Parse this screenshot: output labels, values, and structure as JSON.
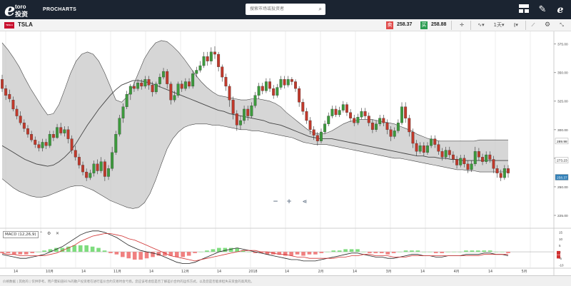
{
  "app": {
    "logo_e": "e",
    "logo_toro": "toro",
    "logo_cn": "投资",
    "product": "PROCHARTS",
    "search_placeholder": "搜索市场或投资者"
  },
  "symbol": {
    "name": "TSLA",
    "flag_text": "TESLA",
    "sell_label": "卖",
    "sell_price": "258.37",
    "buy_label": "买",
    "buy_price": "258.88",
    "timeframe": "1天"
  },
  "macd": {
    "label": "MACD (12,26,9)"
  },
  "footer": {
    "disclaimer": "价格数据 | 其他的 | 仅供参考。用户需知道81%的散户投资者在进行差价合约交易时会亏损。您应该考虑您是否了解差价合约的运作方式，以及您是否能承担失去资金的高风险。"
  },
  "chart_data": {
    "type": "candlestick",
    "x_ticks": [
      "14",
      "10月",
      "14",
      "11月",
      "14",
      "12月",
      "14",
      "2018",
      "14",
      "2月",
      "14",
      "3月",
      "14",
      "4月",
      "14",
      "5月"
    ],
    "price_ticks": [
      "375.00",
      "350.00",
      "325.00",
      "300.00",
      "275.00",
      "250.00",
      "225.00"
    ],
    "macd_ticks": [
      "15",
      "10",
      "5",
      "0",
      "-5",
      "-10"
    ],
    "price_labels": [
      {
        "value": "289.98",
        "color": "#ffffff",
        "text_color": "#222222"
      },
      {
        "value": "273.23",
        "color": "#ffffff",
        "text_color": "#222222"
      },
      {
        "value": "258.37",
        "color": "#2f7fb8",
        "text_color": "#ffffff"
      }
    ],
    "ylim": [
      215,
      386
    ],
    "macd_ylim": [
      -12,
      17
    ],
    "candles": [
      [
        344,
        336,
        348,
        333
      ],
      [
        336,
        330,
        339,
        326
      ],
      [
        331,
        327,
        335,
        324
      ],
      [
        326,
        318,
        329,
        316
      ],
      [
        318,
        312,
        321,
        309
      ],
      [
        312,
        306,
        316,
        304
      ],
      [
        306,
        301,
        309,
        298
      ],
      [
        301,
        296,
        304,
        293
      ],
      [
        296,
        291,
        299,
        289
      ],
      [
        291,
        287,
        294,
        284
      ],
      [
        287,
        284,
        290,
        281
      ],
      [
        284,
        289,
        292,
        281
      ],
      [
        289,
        286,
        292,
        283
      ],
      [
        286,
        296,
        299,
        284
      ],
      [
        296,
        293,
        299,
        290
      ],
      [
        293,
        302,
        305,
        292
      ],
      [
        302,
        297,
        306,
        295
      ],
      [
        297,
        300,
        303,
        294
      ],
      [
        300,
        292,
        303,
        288
      ],
      [
        292,
        282,
        295,
        279
      ],
      [
        282,
        276,
        286,
        273
      ],
      [
        276,
        269,
        279,
        266
      ],
      [
        269,
        263,
        272,
        260
      ],
      [
        263,
        258,
        266,
        255
      ],
      [
        258,
        262,
        265,
        256
      ],
      [
        262,
        270,
        273,
        259
      ],
      [
        270,
        264,
        274,
        261
      ],
      [
        264,
        272,
        276,
        262
      ],
      [
        272,
        259,
        274,
        255
      ],
      [
        259,
        266,
        269,
        256
      ],
      [
        266,
        280,
        285,
        264
      ],
      [
        280,
        296,
        299,
        278
      ],
      [
        296,
        310,
        313,
        294
      ],
      [
        310,
        320,
        323,
        306
      ],
      [
        320,
        331,
        334,
        318
      ],
      [
        331,
        338,
        340,
        326
      ],
      [
        338,
        336,
        342,
        333
      ],
      [
        336,
        341,
        344,
        334
      ],
      [
        341,
        338,
        344,
        335
      ],
      [
        338,
        344,
        347,
        336
      ],
      [
        344,
        339,
        347,
        335
      ],
      [
        339,
        333,
        342,
        329
      ],
      [
        333,
        340,
        342,
        331
      ],
      [
        340,
        346,
        349,
        337
      ],
      [
        346,
        351,
        354,
        344
      ],
      [
        351,
        340,
        353,
        336
      ],
      [
        340,
        326,
        342,
        322
      ],
      [
        326,
        330,
        334,
        324
      ],
      [
        330,
        340,
        342,
        328
      ],
      [
        340,
        336,
        343,
        333
      ],
      [
        336,
        342,
        345,
        334
      ],
      [
        342,
        338,
        345,
        336
      ],
      [
        338,
        349,
        352,
        336
      ],
      [
        349,
        352,
        355,
        346
      ],
      [
        352,
        356,
        360,
        350
      ],
      [
        356,
        364,
        368,
        354
      ],
      [
        364,
        360,
        368,
        356
      ],
      [
        360,
        368,
        372,
        357
      ],
      [
        368,
        366,
        373,
        362
      ],
      [
        366,
        355,
        368,
        351
      ],
      [
        355,
        346,
        357,
        342
      ],
      [
        346,
        338,
        349,
        334
      ],
      [
        338,
        326,
        340,
        320
      ],
      [
        326,
        314,
        329,
        309
      ],
      [
        314,
        304,
        317,
        299
      ],
      [
        304,
        308,
        312,
        300
      ],
      [
        308,
        318,
        321,
        305
      ],
      [
        318,
        312,
        321,
        308
      ],
      [
        312,
        321,
        324,
        310
      ],
      [
        321,
        330,
        333,
        319
      ],
      [
        330,
        338,
        341,
        327
      ],
      [
        338,
        334,
        341,
        331
      ],
      [
        334,
        342,
        345,
        332
      ],
      [
        342,
        336,
        345,
        333
      ],
      [
        336,
        330,
        339,
        327
      ],
      [
        330,
        337,
        340,
        328
      ],
      [
        337,
        344,
        347,
        335
      ],
      [
        344,
        339,
        347,
        336
      ],
      [
        339,
        344,
        347,
        337
      ],
      [
        344,
        342,
        346,
        339
      ],
      [
        342,
        336,
        344,
        333
      ],
      [
        336,
        324,
        338,
        320
      ],
      [
        324,
        316,
        327,
        313
      ],
      [
        316,
        308,
        319,
        305
      ],
      [
        308,
        300,
        311,
        296
      ],
      [
        300,
        295,
        303,
        291
      ],
      [
        295,
        290,
        298,
        286
      ],
      [
        290,
        298,
        301,
        288
      ],
      [
        298,
        305,
        308,
        296
      ],
      [
        305,
        312,
        315,
        303
      ],
      [
        312,
        318,
        321,
        310
      ],
      [
        318,
        313,
        321,
        311
      ],
      [
        313,
        317,
        320,
        311
      ],
      [
        317,
        322,
        325,
        315
      ],
      [
        322,
        315,
        324,
        312
      ],
      [
        315,
        310,
        318,
        307
      ],
      [
        310,
        306,
        313,
        303
      ],
      [
        306,
        311,
        314,
        304
      ],
      [
        311,
        316,
        319,
        309
      ],
      [
        316,
        312,
        319,
        309
      ],
      [
        312,
        306,
        315,
        303
      ],
      [
        306,
        300,
        309,
        297
      ],
      [
        300,
        305,
        308,
        298
      ],
      [
        305,
        310,
        313,
        303
      ],
      [
        310,
        306,
        313,
        303
      ],
      [
        306,
        300,
        309,
        296
      ],
      [
        300,
        294,
        303,
        290
      ],
      [
        294,
        299,
        302,
        292
      ],
      [
        299,
        306,
        309,
        297
      ],
      [
        306,
        320,
        324,
        304
      ],
      [
        320,
        310,
        324,
        306
      ],
      [
        310,
        298,
        313,
        294
      ],
      [
        298,
        288,
        301,
        284
      ],
      [
        288,
        281,
        291,
        277
      ],
      [
        281,
        286,
        289,
        279
      ],
      [
        286,
        280,
        289,
        277
      ],
      [
        280,
        286,
        289,
        278
      ],
      [
        286,
        292,
        295,
        284
      ],
      [
        292,
        287,
        295,
        284
      ],
      [
        287,
        281,
        290,
        278
      ],
      [
        281,
        276,
        284,
        273
      ],
      [
        276,
        282,
        285,
        274
      ],
      [
        282,
        278,
        285,
        275
      ],
      [
        278,
        274,
        281,
        271
      ],
      [
        274,
        269,
        277,
        266
      ],
      [
        269,
        275,
        278,
        267
      ],
      [
        275,
        270,
        278,
        267
      ],
      [
        270,
        265,
        273,
        262
      ],
      [
        265,
        270,
        273,
        263
      ],
      [
        270,
        281,
        285,
        268
      ],
      [
        281,
        276,
        284,
        273
      ],
      [
        276,
        272,
        279,
        269
      ],
      [
        272,
        278,
        281,
        270
      ],
      [
        278,
        274,
        281,
        271
      ],
      [
        274,
        266,
        277,
        262
      ],
      [
        266,
        262,
        269,
        258
      ],
      [
        262,
        258,
        265,
        255
      ],
      [
        258,
        266,
        269,
        256
      ],
      [
        266,
        262,
        269,
        258
      ]
    ],
    "bb_upper": [
      376,
      370,
      363,
      355,
      345,
      336,
      328,
      320,
      313,
      314,
      322,
      335,
      349,
      360,
      366,
      368,
      366,
      360,
      350,
      338,
      326,
      324,
      329,
      338,
      350,
      362,
      370,
      376,
      378,
      377,
      373,
      368,
      362,
      355,
      348,
      342,
      337,
      333,
      330,
      329,
      328,
      327,
      326,
      326,
      327,
      327,
      326,
      325,
      323,
      320,
      315,
      311,
      307,
      303,
      299,
      297,
      296,
      297,
      299,
      302,
      305,
      307,
      308,
      309,
      309,
      309,
      308,
      307,
      306,
      305,
      303,
      301,
      299,
      296,
      294,
      292,
      291,
      290,
      290,
      290,
      290,
      290,
      290,
      290,
      291,
      291,
      291,
      291,
      291,
      291
    ],
    "bb_mid": [
      286,
      283,
      280,
      277,
      274,
      272,
      270,
      269,
      268,
      269,
      272,
      276,
      281,
      288,
      296,
      304,
      311,
      318,
      324,
      330,
      335,
      339,
      341,
      343,
      343,
      342,
      341,
      339,
      337,
      335,
      333,
      331,
      329,
      327,
      325,
      323,
      321,
      319,
      317,
      316,
      314,
      313,
      312,
      311,
      310,
      309,
      308,
      306,
      305,
      304,
      302,
      300,
      298,
      296,
      294,
      293,
      292,
      292,
      292,
      291,
      290,
      289,
      288,
      287,
      286,
      285,
      284,
      283,
      282,
      281,
      280,
      279,
      278,
      277,
      277,
      276,
      276,
      275,
      275,
      274,
      274,
      273,
      273,
      273,
      273,
      273,
      273,
      273,
      273,
      273
    ],
    "bb_lower": [
      257,
      253,
      249,
      246,
      244,
      242,
      241,
      241,
      242,
      244,
      246,
      248,
      250,
      251,
      251,
      249,
      247,
      244,
      241,
      238,
      236,
      234,
      232,
      231,
      232,
      236,
      244,
      256,
      270,
      283,
      292,
      298,
      302,
      304,
      305,
      305,
      305,
      304,
      304,
      303,
      302,
      301,
      300,
      300,
      299,
      299,
      298,
      297,
      296,
      295,
      294,
      293,
      291,
      289,
      288,
      287,
      287,
      287,
      286,
      285,
      284,
      283,
      282,
      281,
      280,
      279,
      278,
      277,
      276,
      275,
      275,
      274,
      273,
      272,
      271,
      270,
      269,
      268,
      267,
      266,
      265,
      265,
      264,
      264,
      263,
      263,
      263,
      263,
      263,
      263
    ],
    "macd_line": [
      -2,
      -3,
      -4,
      -5,
      -5,
      -4,
      -3,
      -2,
      0,
      2,
      4,
      7,
      10,
      13,
      15,
      16,
      16,
      15,
      13,
      11,
      8,
      5,
      3,
      1,
      0,
      -1,
      -2,
      -4,
      -6,
      -8,
      -9,
      -9,
      -8,
      -6,
      -4,
      -2,
      0,
      1,
      2,
      3,
      2,
      1,
      0,
      -1,
      -2,
      -3,
      -4,
      -5,
      -6,
      -6,
      -7,
      -7,
      -7,
      -6,
      -5,
      -4,
      -3,
      -2,
      -1,
      -1,
      -2,
      -3,
      -4,
      -4,
      -5,
      -5,
      -4,
      -3,
      -2,
      -2,
      -3,
      -3,
      -4,
      -4,
      -3,
      -3,
      -3,
      -2,
      -2,
      -2,
      -1,
      -1,
      -2,
      -2,
      -3
    ],
    "signal_line": [
      -1,
      -2,
      -2,
      -3,
      -3,
      -3,
      -3,
      -3,
      -2,
      -1,
      1,
      3,
      5,
      8,
      10,
      12,
      13,
      14,
      14,
      13,
      12,
      10,
      9,
      7,
      5,
      3,
      1,
      -1,
      -3,
      -4,
      -5,
      -6,
      -7,
      -6,
      -5,
      -4,
      -3,
      -2,
      -1,
      0,
      1,
      1,
      1,
      0,
      0,
      -1,
      -2,
      -2,
      -3,
      -4,
      -4,
      -5,
      -5,
      -5,
      -5,
      -5,
      -4,
      -4,
      -3,
      -3,
      -2,
      -2,
      -3,
      -3,
      -3,
      -4,
      -4,
      -4,
      -3,
      -3,
      -3,
      -3,
      -3,
      -3,
      -3,
      -3,
      -3,
      -3,
      -3,
      -3,
      -2,
      -2,
      -2,
      -2,
      -2
    ],
    "colors": {
      "up": "#3c9a3c",
      "down": "#c0392b",
      "band_fill": "#cfcfcf",
      "band_line": "#444444",
      "macd_line": "#222222",
      "signal_line": "#d03030",
      "hist_up": "#7edc7e",
      "hist_down": "#f08080"
    }
  }
}
